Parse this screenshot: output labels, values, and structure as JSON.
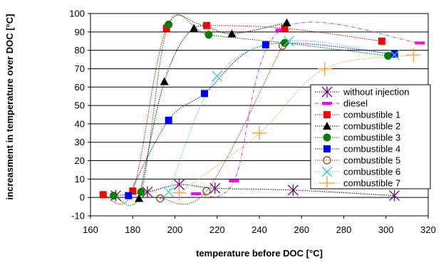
{
  "chart_data": {
    "type": "scatter",
    "title": "",
    "xlabel": "temperature before DOC [°C]",
    "ylabel": "increasment in temperature over DOC [°C]",
    "xlim": [
      160,
      320
    ],
    "ylim": [
      -10,
      100
    ],
    "xticks": [
      160,
      180,
      200,
      220,
      240,
      260,
      280,
      300,
      320
    ],
    "yticks": [
      -10,
      0,
      10,
      20,
      30,
      40,
      50,
      60,
      70,
      80,
      90,
      100
    ],
    "grid": "horizontal",
    "legend_position": "right",
    "series": [
      {
        "name": "without injection",
        "marker": "asterisk",
        "color": "#800080",
        "line_style": "dotted",
        "line_color": "#000000",
        "points": [
          [
            172,
            1
          ],
          [
            187,
            3
          ],
          [
            202,
            7
          ],
          [
            219,
            5
          ],
          [
            256,
            4
          ],
          [
            304,
            1
          ]
        ]
      },
      {
        "name": "diesel",
        "marker": "dash",
        "color": "#ff00ff",
        "line_style": "dashdot",
        "line_color": "#cc33cc",
        "points": [
          [
            210,
            2
          ],
          [
            228,
            9
          ],
          [
            250,
            91
          ],
          [
            316,
            84
          ]
        ]
      },
      {
        "name": "combustible 1",
        "marker": "square",
        "color": "#ff0000",
        "line_style": "dotted",
        "line_color": "#cc0000",
        "points": [
          [
            166,
            1.5
          ],
          [
            180,
            3.5
          ],
          [
            196,
            92
          ],
          [
            215,
            93.5
          ],
          [
            252,
            92
          ],
          [
            298,
            85
          ]
        ]
      },
      {
        "name": "combustible 2",
        "marker": "triangle",
        "color": "#000000",
        "line_style": "dotted",
        "line_color": "#000000",
        "points": [
          [
            183,
            -0.5
          ],
          [
            195,
            63
          ],
          [
            209,
            92
          ],
          [
            227,
            89
          ],
          [
            253,
            95
          ]
        ]
      },
      {
        "name": "combustible 3",
        "marker": "circle",
        "color": "#008000",
        "line_style": "dotted",
        "line_color": "#006600",
        "points": [
          [
            171,
            1
          ],
          [
            184,
            3
          ],
          [
            197,
            94
          ],
          [
            216,
            88.5
          ],
          [
            252,
            84
          ],
          [
            301,
            77
          ]
        ]
      },
      {
        "name": "combustible 4",
        "marker": "square",
        "color": "#0000ff",
        "line_style": "dotted",
        "line_color": "#0000cc",
        "points": [
          [
            178,
            1
          ],
          [
            197,
            42
          ],
          [
            214,
            56.5
          ],
          [
            243,
            83
          ],
          [
            304,
            78
          ]
        ]
      },
      {
        "name": "combustible 5",
        "marker": "open-circle",
        "color": "#993300",
        "line_style": "dotted",
        "line_color": "#993300",
        "points": [
          [
            193,
            -0.5
          ],
          [
            215,
            3.5
          ],
          [
            251,
            82.5
          ]
        ]
      },
      {
        "name": "combustible 6",
        "marker": "x",
        "color": "#33cccc",
        "line_style": "dotted",
        "line_color": "#33cccc",
        "points": [
          [
            197,
            3
          ],
          [
            220,
            66
          ],
          [
            254,
            85
          ],
          [
            304,
            77.5
          ]
        ]
      },
      {
        "name": "combustible 7",
        "marker": "plus",
        "color": "#ff9933",
        "line_style": "dotted",
        "line_color": "#ff9933",
        "points": [
          [
            202,
            2.5
          ],
          [
            240,
            35
          ],
          [
            271,
            70
          ],
          [
            313,
            77.5
          ]
        ]
      }
    ]
  }
}
